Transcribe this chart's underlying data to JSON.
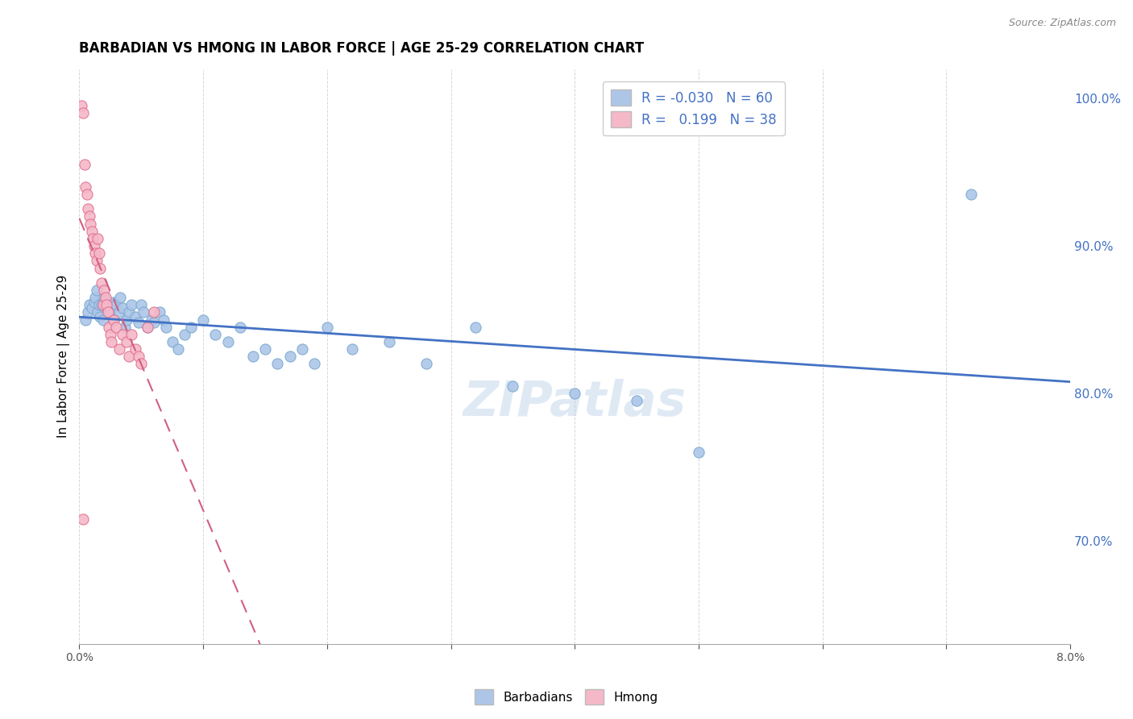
{
  "title": "BARBADIAN VS HMONG IN LABOR FORCE | AGE 25-29 CORRELATION CHART",
  "source": "Source: ZipAtlas.com",
  "ylabel": "In Labor Force | Age 25-29",
  "x_min": 0.0,
  "x_max": 8.0,
  "y_min": 63.0,
  "y_max": 102.0,
  "right_yticks": [
    70.0,
    80.0,
    90.0,
    100.0
  ],
  "barbadian_color": "#adc6e8",
  "barbadian_edge": "#7aaad0",
  "hmong_color": "#f5b8c8",
  "hmong_edge": "#e07090",
  "trend_blue": "#4472c4",
  "trend_pink": "#d06080",
  "R_barbadian": -0.03,
  "N_barbadian": 60,
  "R_hmong": 0.199,
  "N_hmong": 38,
  "barbadian_x": [
    0.05,
    0.07,
    0.08,
    0.1,
    0.12,
    0.13,
    0.14,
    0.15,
    0.16,
    0.17,
    0.18,
    0.19,
    0.2,
    0.22,
    0.23,
    0.25,
    0.27,
    0.28,
    0.3,
    0.32,
    0.33,
    0.35,
    0.37,
    0.38,
    0.4,
    0.42,
    0.45,
    0.48,
    0.5,
    0.52,
    0.55,
    0.58,
    0.6,
    0.65,
    0.68,
    0.7,
    0.75,
    0.8,
    0.85,
    0.9,
    1.0,
    1.1,
    1.2,
    1.3,
    1.4,
    1.5,
    1.6,
    1.7,
    1.8,
    1.9,
    2.0,
    2.2,
    2.5,
    2.8,
    3.2,
    3.5,
    4.0,
    4.5,
    5.0,
    7.2
  ],
  "barbadian_y": [
    85.0,
    85.5,
    86.0,
    85.8,
    86.2,
    86.5,
    87.0,
    85.5,
    86.0,
    85.2,
    86.0,
    85.0,
    86.5,
    85.8,
    86.0,
    85.5,
    86.2,
    85.0,
    86.0,
    85.5,
    86.5,
    85.8,
    84.5,
    85.0,
    85.5,
    86.0,
    85.2,
    84.8,
    86.0,
    85.5,
    84.5,
    85.0,
    84.8,
    85.5,
    85.0,
    84.5,
    83.5,
    83.0,
    84.0,
    84.5,
    85.0,
    84.0,
    83.5,
    84.5,
    82.5,
    83.0,
    82.0,
    82.5,
    83.0,
    82.0,
    84.5,
    83.0,
    83.5,
    82.0,
    84.5,
    80.5,
    80.0,
    79.5,
    76.0,
    93.5
  ],
  "hmong_x": [
    0.02,
    0.03,
    0.04,
    0.05,
    0.06,
    0.07,
    0.08,
    0.09,
    0.1,
    0.11,
    0.12,
    0.13,
    0.14,
    0.15,
    0.16,
    0.17,
    0.18,
    0.19,
    0.2,
    0.21,
    0.22,
    0.23,
    0.24,
    0.25,
    0.26,
    0.28,
    0.3,
    0.32,
    0.35,
    0.38,
    0.4,
    0.42,
    0.45,
    0.48,
    0.5,
    0.55,
    0.6,
    0.03
  ],
  "hmong_y": [
    99.5,
    99.0,
    95.5,
    94.0,
    93.5,
    92.5,
    92.0,
    91.5,
    91.0,
    90.5,
    90.0,
    89.5,
    89.0,
    90.5,
    89.5,
    88.5,
    87.5,
    86.0,
    87.0,
    86.5,
    86.0,
    85.5,
    84.5,
    84.0,
    83.5,
    85.0,
    84.5,
    83.0,
    84.0,
    83.5,
    82.5,
    84.0,
    83.0,
    82.5,
    82.0,
    84.5,
    85.5,
    71.5
  ],
  "watermark": "ZIPatlas",
  "barbadian_label": "Barbadians",
  "hmong_label": "Hmong"
}
